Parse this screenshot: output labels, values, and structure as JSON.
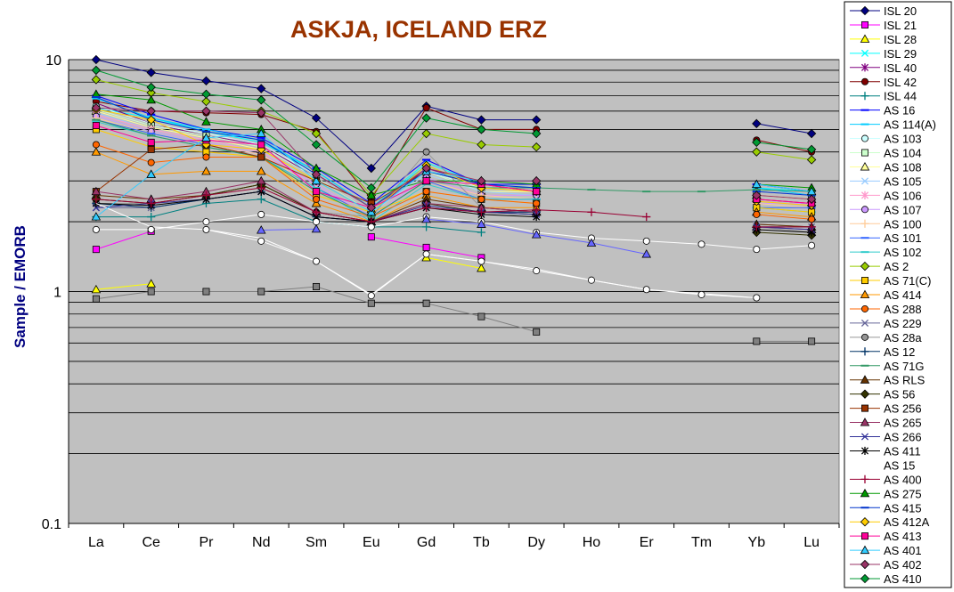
{
  "chart_data": {
    "type": "line",
    "title": "ASKJA, ICELAND ERZ",
    "xlabel": "",
    "ylabel": "Sample / EMORB",
    "yscale": "log",
    "ylim": [
      0.1,
      10
    ],
    "y_tick_labels": [
      "10",
      "1",
      "0.1"
    ],
    "grid": true,
    "legend_position": "right",
    "plot_background": "#c0c0c0",
    "categories": [
      "La",
      "Ce",
      "Pr",
      "Nd",
      "Sm",
      "Eu",
      "Gd",
      "Tb",
      "Dy",
      "Ho",
      "Er",
      "Tm",
      "Yb",
      "Lu"
    ],
    "series": [
      {
        "name": "ISL 20",
        "color": "#000080",
        "marker": "diamond",
        "values": [
          10,
          8.8,
          8.1,
          7.5,
          5.6,
          3.4,
          6.3,
          5.5,
          5.5,
          null,
          null,
          null,
          5.3,
          4.8
        ]
      },
      {
        "name": "ISL 21",
        "color": "#ff00ff",
        "marker": "square",
        "values": [
          1.52,
          1.82,
          null,
          null,
          null,
          1.72,
          1.55,
          1.4,
          null,
          null,
          null,
          null,
          null,
          null
        ]
      },
      {
        "name": "ISL 28",
        "color": "#ffff00",
        "marker": "triangle",
        "values": [
          1.02,
          1.08,
          null,
          null,
          null,
          null,
          1.4,
          1.26,
          null,
          null,
          null,
          null,
          null,
          null
        ]
      },
      {
        "name": "ISL 29",
        "color": "#00ffff",
        "marker": "x",
        "values": [
          6.2,
          5.6,
          4.9,
          4.4,
          3.3,
          2.3,
          3.6,
          2.9,
          2.8,
          null,
          null,
          null,
          2.8,
          2.7
        ]
      },
      {
        "name": "ISL 40",
        "color": "#800080",
        "marker": "star",
        "values": [
          6.5,
          5.3,
          4.7,
          4.3,
          3.1,
          2.2,
          3.4,
          2.9,
          2.9,
          null,
          null,
          null,
          2.7,
          2.6
        ]
      },
      {
        "name": "ISL 42",
        "color": "#800000",
        "marker": "circle",
        "values": [
          6.6,
          6.0,
          5.9,
          5.8,
          4.9,
          2.5,
          6.2,
          5.0,
          5.0,
          null,
          null,
          null,
          4.5,
          4.0
        ]
      },
      {
        "name": "ISL 44",
        "color": "#008080",
        "marker": "plus",
        "values": [
          2.1,
          2.1,
          2.4,
          2.5,
          2.0,
          1.9,
          1.9,
          1.8,
          null,
          null,
          null,
          null,
          null,
          null
        ]
      },
      {
        "name": "AS 16",
        "color": "#0000ff",
        "marker": "dash",
        "values": [
          7.0,
          5.8,
          5.0,
          4.6,
          3.4,
          2.4,
          3.7,
          2.9,
          2.9,
          null,
          null,
          null,
          2.9,
          2.7
        ]
      },
      {
        "name": "AS 114(A)",
        "color": "#00ccff",
        "marker": "dash",
        "values": [
          6.8,
          5.6,
          5.0,
          4.5,
          3.3,
          2.3,
          3.5,
          2.8,
          2.8,
          null,
          null,
          null,
          2.8,
          2.6
        ]
      },
      {
        "name": "AS 103",
        "color": "#ccffff",
        "marker": "circle",
        "values": [
          6.3,
          5.3,
          4.8,
          4.3,
          3.2,
          2.3,
          3.3,
          2.8,
          2.8,
          null,
          null,
          null,
          2.7,
          2.6
        ]
      },
      {
        "name": "AS 104",
        "color": "#ccffcc",
        "marker": "square",
        "values": [
          6.1,
          5.2,
          4.7,
          4.2,
          3.1,
          2.2,
          3.3,
          2.7,
          2.7,
          null,
          null,
          null,
          2.6,
          2.5
        ]
      },
      {
        "name": "AS 108",
        "color": "#ffff99",
        "marker": "triangle",
        "values": [
          6.0,
          5.1,
          4.6,
          4.1,
          3.0,
          2.2,
          3.2,
          2.7,
          2.7,
          null,
          null,
          null,
          2.6,
          2.5
        ]
      },
      {
        "name": "AS 105",
        "color": "#99ccff",
        "marker": "x",
        "values": [
          5.9,
          5.0,
          4.5,
          4.0,
          3.0,
          2.2,
          3.2,
          2.7,
          2.6,
          null,
          null,
          null,
          2.5,
          2.4
        ]
      },
      {
        "name": "AS 106",
        "color": "#ff99cc",
        "marker": "star",
        "values": [
          5.8,
          5.0,
          4.5,
          4.0,
          2.9,
          2.1,
          3.1,
          2.6,
          2.6,
          null,
          null,
          null,
          2.5,
          2.4
        ]
      },
      {
        "name": "AS 107",
        "color": "#cc99ff",
        "marker": "circle",
        "values": [
          5.7,
          4.9,
          4.4,
          3.9,
          2.9,
          2.1,
          3.1,
          2.6,
          2.6,
          null,
          null,
          null,
          2.4,
          2.4
        ]
      },
      {
        "name": "AS 100",
        "color": "#ffcc99",
        "marker": "plus",
        "values": [
          5.6,
          4.8,
          4.3,
          3.9,
          2.8,
          2.1,
          3.0,
          2.6,
          2.5,
          null,
          null,
          null,
          2.4,
          2.3
        ]
      },
      {
        "name": "AS 101",
        "color": "#3366ff",
        "marker": "dash",
        "values": [
          5.5,
          4.8,
          4.3,
          3.8,
          2.8,
          2.1,
          3.0,
          2.5,
          2.5,
          null,
          null,
          null,
          2.3,
          2.3
        ]
      },
      {
        "name": "AS 102",
        "color": "#33cccc",
        "marker": "dash",
        "values": [
          5.4,
          4.7,
          4.2,
          3.8,
          2.8,
          2.0,
          2.9,
          2.5,
          2.5,
          null,
          null,
          null,
          2.3,
          2.2
        ]
      },
      {
        "name": "AS 2",
        "color": "#99cc00",
        "marker": "diamond",
        "values": [
          8.2,
          7.2,
          6.6,
          6.0,
          4.8,
          2.6,
          4.8,
          4.3,
          4.2,
          null,
          null,
          null,
          4.0,
          3.7
        ]
      },
      {
        "name": "AS 71(C)",
        "color": "#ffcc00",
        "marker": "square",
        "values": [
          5.0,
          4.2,
          4.0,
          3.8,
          2.6,
          2.2,
          2.7,
          2.5,
          2.4,
          null,
          null,
          null,
          2.3,
          2.2
        ]
      },
      {
        "name": "AS 414",
        "color": "#ff9900",
        "marker": "triangle",
        "values": [
          4.0,
          3.2,
          3.3,
          3.3,
          2.4,
          2.0,
          2.6,
          2.3,
          2.3,
          null,
          null,
          null,
          2.2,
          2.1
        ]
      },
      {
        "name": "AS 288",
        "color": "#ff6600",
        "marker": "circle",
        "values": [
          4.3,
          3.6,
          3.8,
          3.8,
          2.5,
          2.1,
          2.7,
          2.5,
          2.4,
          null,
          null,
          null,
          2.15,
          2.05
        ]
      },
      {
        "name": "AS 229",
        "color": "#666699",
        "marker": "x",
        "values": [
          2.3,
          2.3,
          2.5,
          2.7,
          2.1,
          2.0,
          2.3,
          2.2,
          2.2,
          null,
          null,
          null,
          1.95,
          1.9
        ]
      },
      {
        "name": "AS 28a",
        "color": "#969696",
        "marker": "circle",
        "values": [
          2.4,
          2.4,
          2.6,
          2.9,
          2.2,
          2.1,
          4.0,
          2.3,
          2.2,
          null,
          null,
          null,
          1.9,
          1.8
        ]
      },
      {
        "name": "AS 12",
        "color": "#003366",
        "marker": "plus",
        "values": [
          2.4,
          2.3,
          2.5,
          2.7,
          2.1,
          2.0,
          2.3,
          2.2,
          2.2,
          null,
          null,
          null,
          1.9,
          1.9
        ]
      },
      {
        "name": "AS 71G",
        "color": "#339966",
        "marker": "dash",
        "values": [
          5.5,
          4.7,
          4.2,
          3.8,
          2.7,
          2.1,
          3.0,
          2.8,
          2.8,
          2.75,
          2.7,
          2.7,
          2.75,
          2.7
        ]
      },
      {
        "name": "AS RLS",
        "color": "#663300",
        "marker": "triangle",
        "values": [
          2.6,
          2.5,
          2.6,
          2.9,
          2.2,
          2.0,
          2.5,
          2.3,
          2.2,
          null,
          null,
          null,
          1.95,
          1.9
        ]
      },
      {
        "name": "AS 56",
        "color": "#333300",
        "marker": "diamond",
        "values": [
          2.5,
          2.4,
          2.6,
          2.9,
          2.2,
          2.0,
          2.4,
          2.2,
          2.15,
          null,
          null,
          null,
          1.8,
          1.75
        ]
      },
      {
        "name": "AS 256",
        "color": "#993300",
        "marker": "square",
        "values": [
          2.7,
          4.1,
          4.3,
          3.8,
          3.0,
          2.4,
          3.3,
          2.9,
          2.7,
          null,
          null,
          null,
          2.5,
          2.4
        ]
      },
      {
        "name": "AS 265",
        "color": "#993366",
        "marker": "triangle",
        "values": [
          2.7,
          2.5,
          2.7,
          3.0,
          2.2,
          2.0,
          2.4,
          2.3,
          2.2,
          null,
          null,
          null,
          1.9,
          1.85
        ]
      },
      {
        "name": "AS 266",
        "color": "#333399",
        "marker": "x",
        "values": [
          2.3,
          2.4,
          2.5,
          2.7,
          2.1,
          2.0,
          2.35,
          2.2,
          2.15,
          null,
          null,
          null,
          1.9,
          1.85
        ]
      },
      {
        "name": "AS 411",
        "color": "#000000",
        "marker": "star",
        "values": [
          2.4,
          2.35,
          2.5,
          2.7,
          2.1,
          2.0,
          2.3,
          2.15,
          2.1,
          null,
          null,
          null,
          1.85,
          1.8
        ]
      },
      {
        "name": "AS 15",
        "color": "#ffffff",
        "marker": "none",
        "values": [
          2.4,
          1.9,
          1.85,
          1.7,
          1.35,
          0.97,
          1.45,
          1.35,
          1.25,
          1.12,
          1.02,
          0.98,
          0.94,
          null
        ]
      },
      {
        "name": "AS 400",
        "color": "#990033",
        "marker": "plus",
        "values": [
          2.5,
          2.4,
          2.6,
          2.8,
          2.2,
          2.0,
          2.3,
          2.2,
          2.25,
          2.2,
          2.1,
          null,
          1.9,
          1.9
        ]
      },
      {
        "name": "AS 275",
        "color": "#009900",
        "marker": "triangle",
        "values": [
          7.1,
          6.7,
          5.4,
          5.0,
          3.4,
          2.6,
          3.0,
          3.0,
          2.9,
          null,
          null,
          null,
          2.9,
          2.8
        ]
      },
      {
        "name": "AS 415",
        "color": "#0033cc",
        "marker": "dash",
        "values": [
          6.9,
          5.5,
          4.9,
          4.5,
          3.2,
          2.3,
          3.3,
          2.9,
          2.8,
          null,
          null,
          null,
          2.7,
          2.6
        ]
      },
      {
        "name": "AS 412A",
        "color": "#ffcc00",
        "marker": "diamond",
        "values": [
          6.1,
          5.5,
          4.3,
          4.1,
          3.0,
          2.2,
          3.5,
          2.8,
          2.7,
          null,
          null,
          null,
          2.45,
          2.35
        ]
      },
      {
        "name": "AS 413",
        "color": "#ff0099",
        "marker": "square",
        "values": [
          5.2,
          4.4,
          4.5,
          4.3,
          2.7,
          2.3,
          3.0,
          2.9,
          2.7,
          null,
          null,
          null,
          2.5,
          2.4
        ]
      },
      {
        "name": "AS 401",
        "color": "#33ccff",
        "marker": "triangle",
        "values": [
          2.1,
          3.2,
          4.6,
          4.8,
          3.0,
          2.2,
          3.3,
          3.0,
          3.0,
          null,
          null,
          null,
          2.9,
          2.7
        ]
      },
      {
        "name": "AS 402",
        "color": "#993366",
        "marker": "diamond",
        "values": [
          6.2,
          6.0,
          6.0,
          5.9,
          3.2,
          2.3,
          3.4,
          3.0,
          3.0,
          null,
          null,
          null,
          2.6,
          2.5
        ]
      },
      {
        "name": "AS 410",
        "color": "#009933",
        "marker": "diamond",
        "values": [
          9.0,
          7.6,
          7.1,
          6.7,
          4.3,
          2.8,
          5.6,
          5.0,
          4.8,
          null,
          null,
          null,
          4.4,
          4.1
        ]
      },
      {
        "name": "",
        "color": "#ffffff",
        "marker": "circle",
        "values": [
          1.85,
          1.85,
          2.0,
          2.15,
          2.0,
          1.9,
          2.1,
          2.0,
          1.8,
          1.7,
          1.65,
          1.6,
          1.52,
          1.58
        ]
      },
      {
        "name": "",
        "color": "#ffffff",
        "marker": "circle",
        "values": [
          null,
          null,
          1.85,
          1.65,
          1.35,
          0.96,
          1.45,
          1.35,
          1.23,
          1.12,
          1.02,
          0.97,
          0.94,
          null
        ]
      },
      {
        "name": "",
        "color": "#808080",
        "marker": "square",
        "values": [
          0.93,
          1.0,
          1.0,
          1.0,
          1.05,
          0.89,
          0.89,
          0.78,
          0.67,
          null,
          null,
          null,
          0.61,
          0.61
        ]
      },
      {
        "name": "",
        "color": "#6666ff",
        "marker": "triangle",
        "values": [
          null,
          null,
          null,
          1.84,
          1.86,
          null,
          2.05,
          1.95,
          1.76,
          1.62,
          1.45,
          null,
          null,
          null
        ]
      }
    ]
  }
}
